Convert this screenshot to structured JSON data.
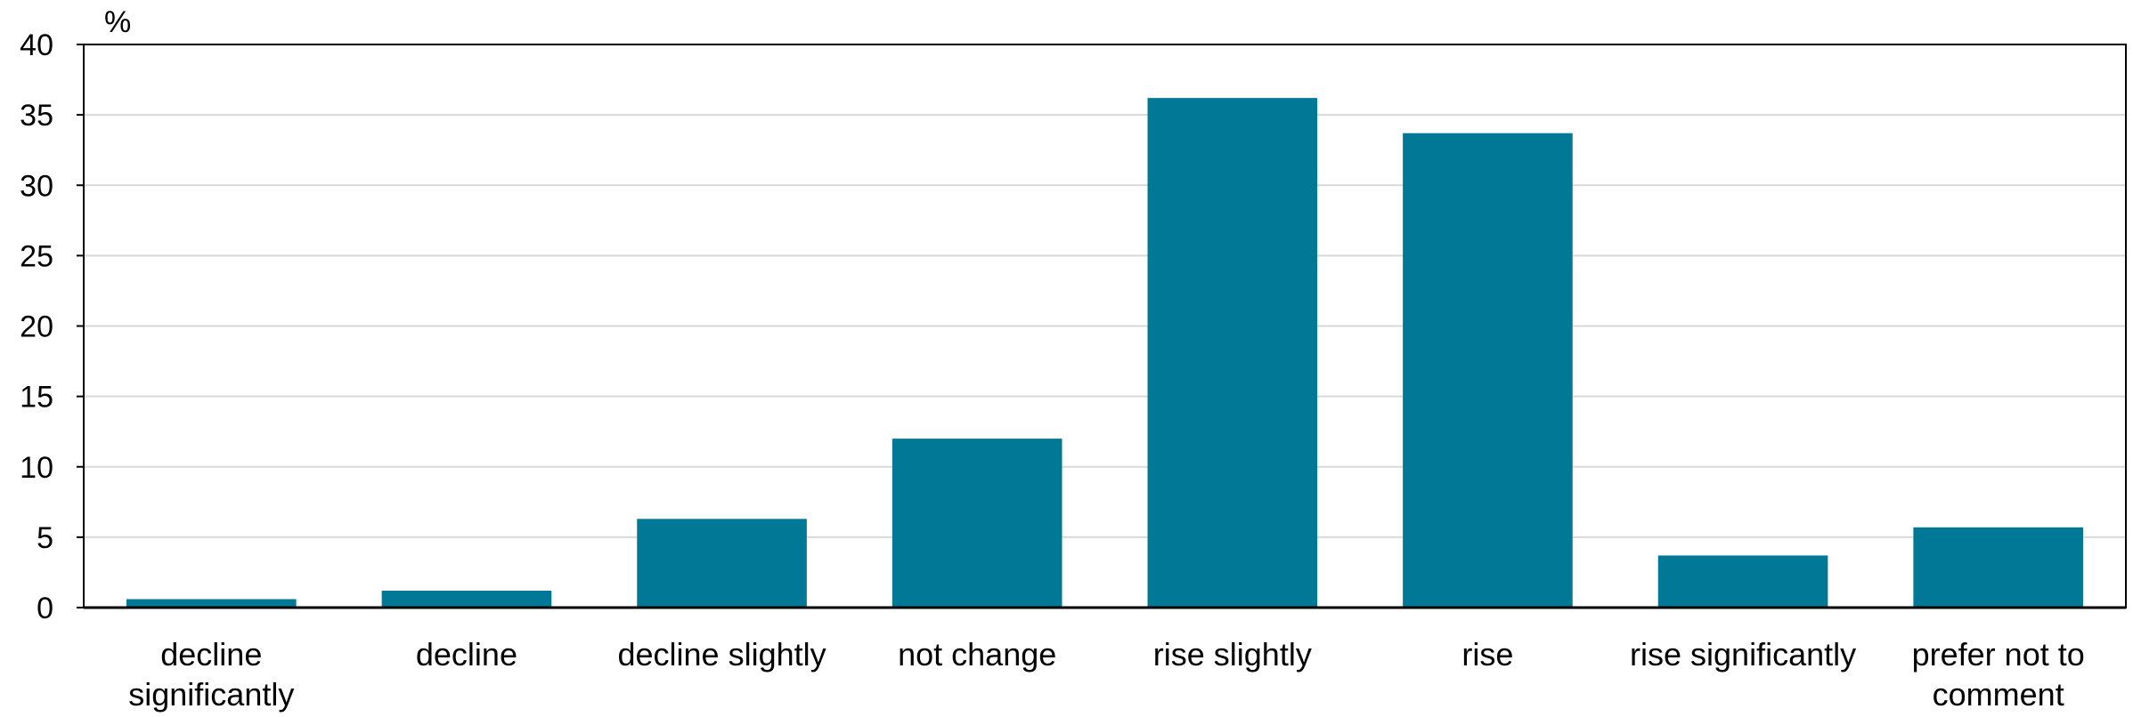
{
  "chart_data": {
    "type": "bar",
    "unit_label": "%",
    "categories": [
      [
        "decline",
        "significantly"
      ],
      [
        "decline"
      ],
      [
        "decline slightly"
      ],
      [
        "not change"
      ],
      [
        "rise slightly"
      ],
      [
        "rise"
      ],
      [
        "rise significantly"
      ],
      [
        "prefer not to",
        "comment"
      ]
    ],
    "values": [
      0.6,
      1.2,
      6.3,
      12.0,
      36.2,
      33.7,
      3.7,
      5.7
    ],
    "ylim": [
      0,
      40
    ],
    "yticks": [
      0,
      5,
      10,
      15,
      20,
      25,
      30,
      35,
      40
    ],
    "grid": true,
    "colors": {
      "bar": "#007896",
      "grid": "#d9d9d9",
      "axis": "#000000"
    }
  }
}
